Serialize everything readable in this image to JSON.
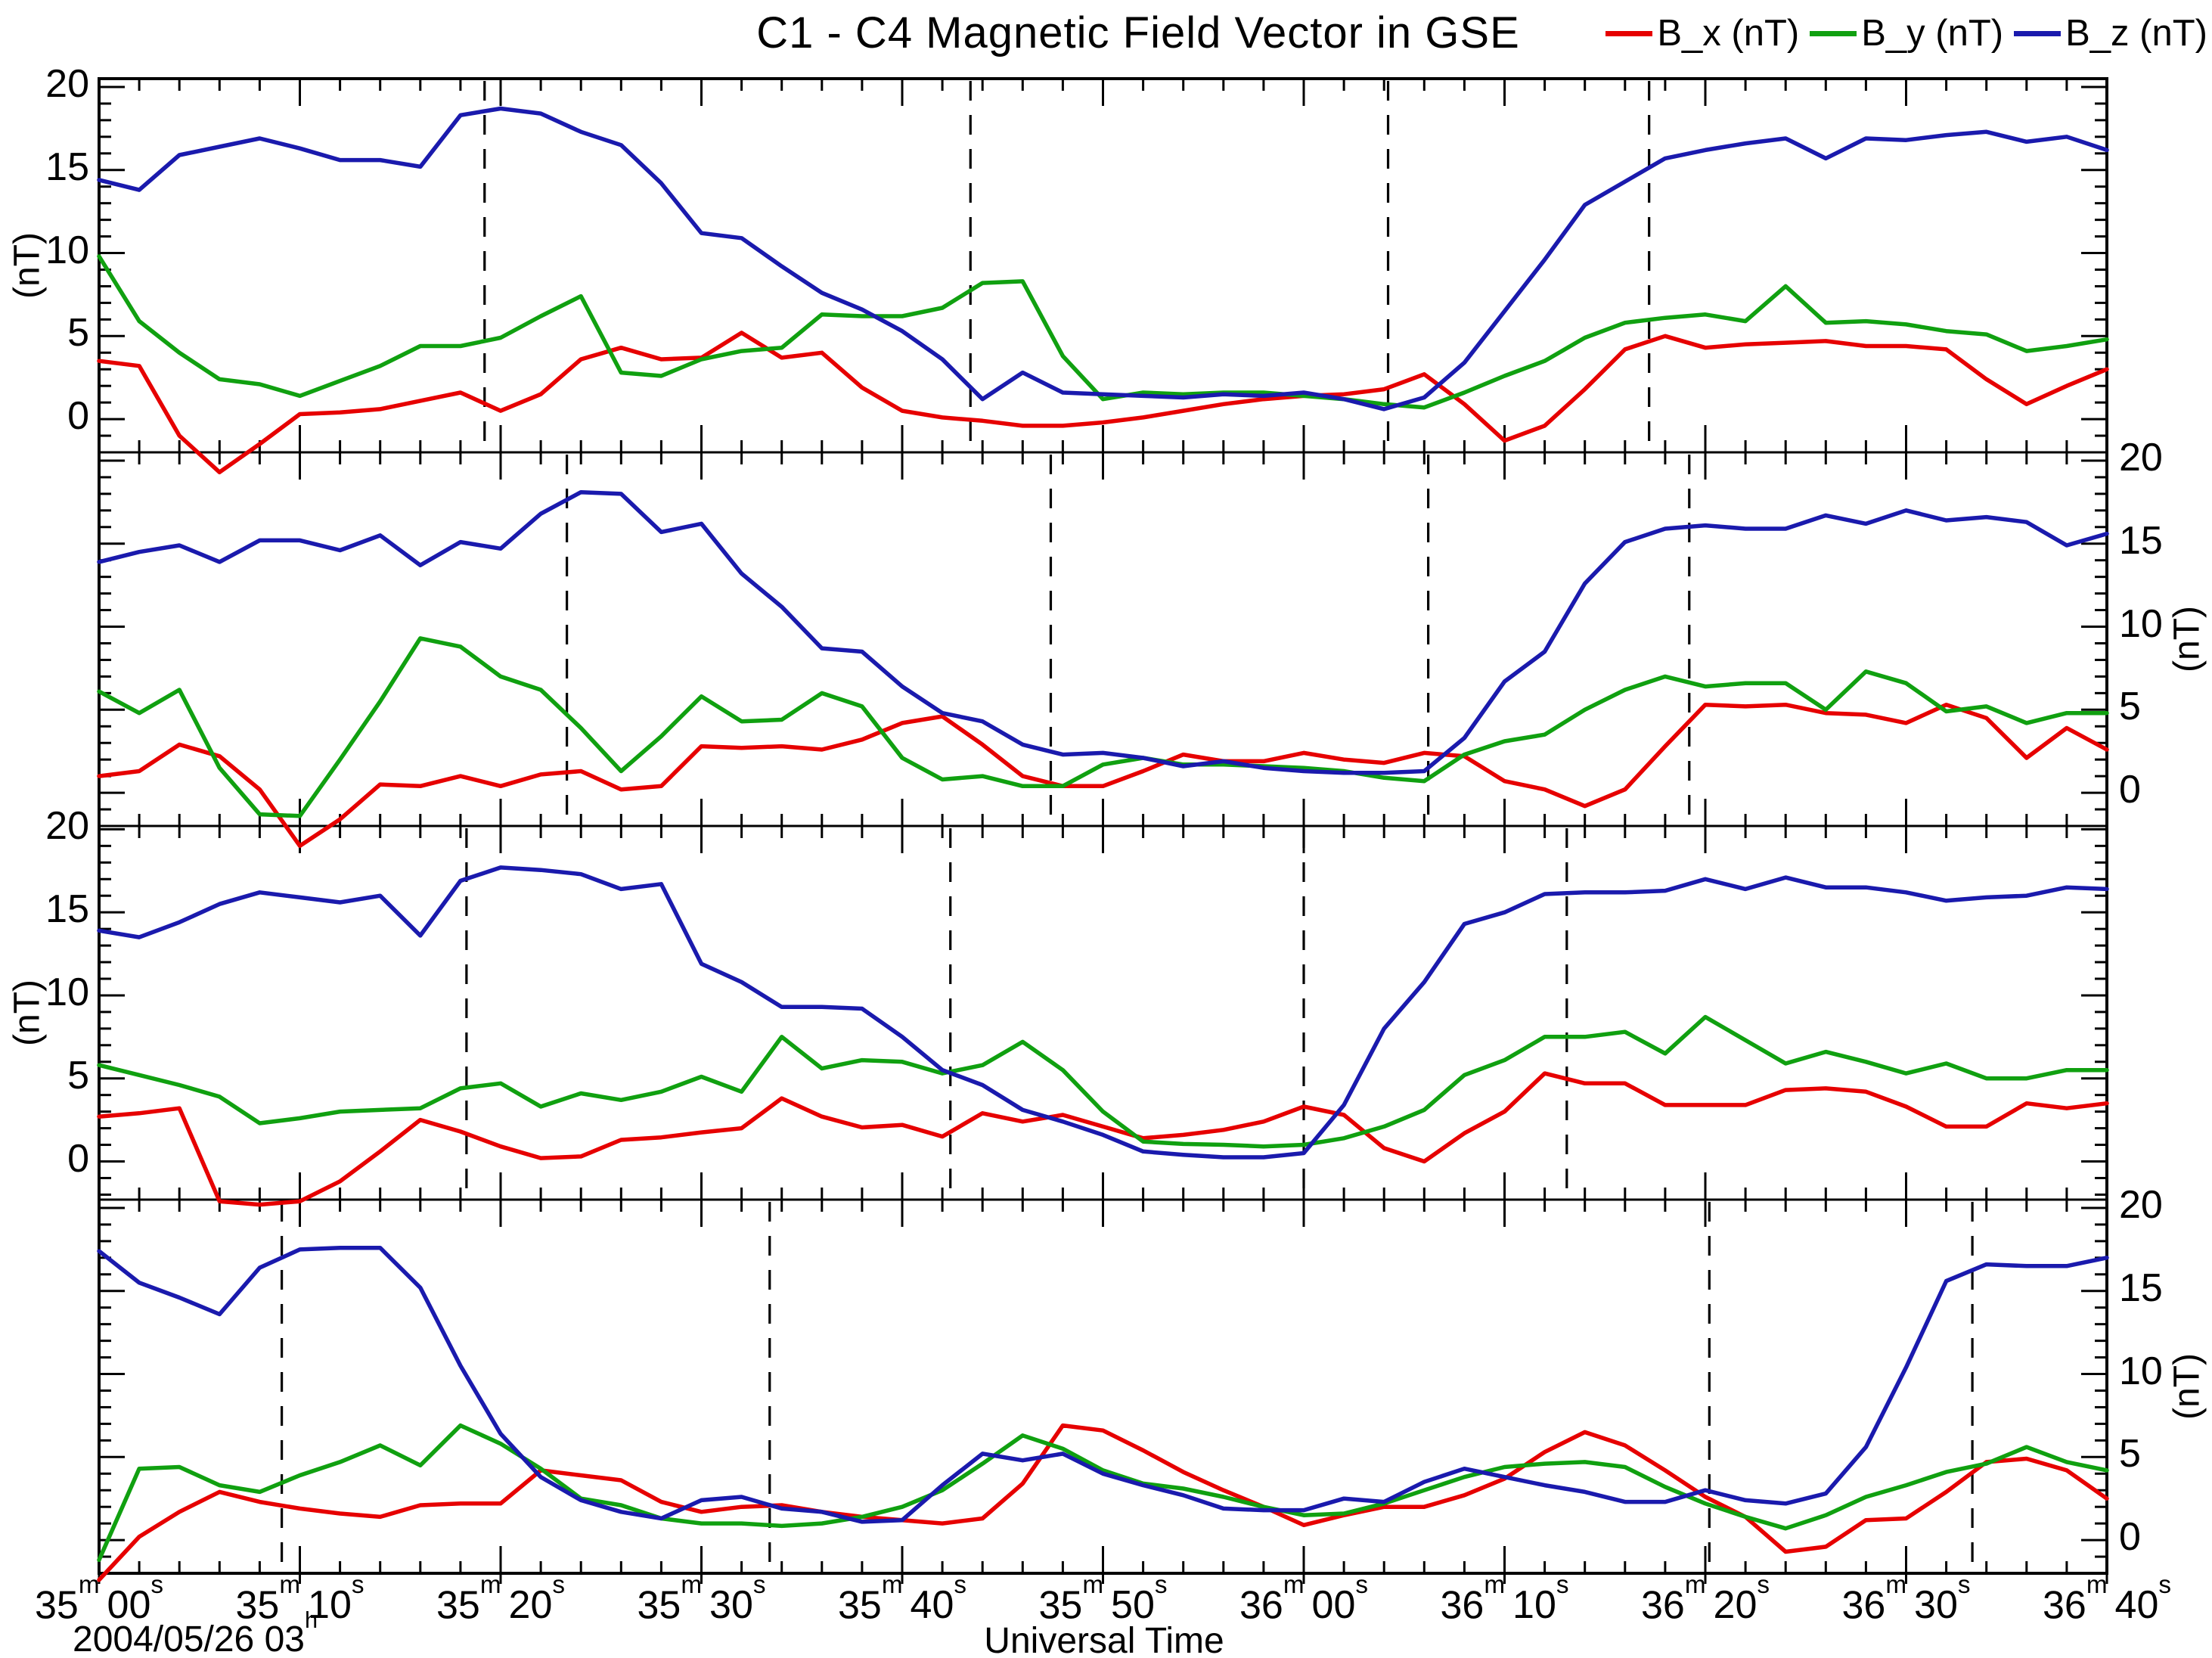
{
  "chart_data": {
    "type": "line",
    "title": "C1 - C4  Magnetic Field Vector in GSE",
    "xlabel": "Universal Time",
    "ylabel": "(nT)",
    "date_label": {
      "text": "2004/05/26 03",
      "sup": "h"
    },
    "legend": [
      {
        "key": "B_x",
        "label": "B_x (nT)",
        "color": "#e60000"
      },
      {
        "key": "B_y",
        "label": "B_y (nT)",
        "color": "#10a010"
      },
      {
        "key": "B_z",
        "label": "B_z (nT)",
        "color": "#1a1aad"
      }
    ],
    "x_seconds": {
      "start": 0,
      "end": 100,
      "step": 2
    },
    "xticks": [
      {
        "t": 0,
        "min": "35",
        "sec": "00"
      },
      {
        "t": 10,
        "min": "35",
        "sec": "10"
      },
      {
        "t": 20,
        "min": "35",
        "sec": "20"
      },
      {
        "t": 30,
        "min": "35",
        "sec": "30"
      },
      {
        "t": 40,
        "min": "35",
        "sec": "40"
      },
      {
        "t": 50,
        "min": "35",
        "sec": "50"
      },
      {
        "t": 60,
        "min": "36",
        "sec": "00"
      },
      {
        "t": 70,
        "min": "36",
        "sec": "10"
      },
      {
        "t": 80,
        "min": "36",
        "sec": "20"
      },
      {
        "t": 90,
        "min": "36",
        "sec": "30"
      },
      {
        "t": 100,
        "min": "36",
        "sec": "40"
      }
    ],
    "yticks": [
      0,
      5,
      10,
      15,
      20
    ],
    "panels": [
      {
        "id": "C1",
        "ylabel_side": "left",
        "ylim": [
          -2.0,
          20.5
        ],
        "dashed_lines_t": [
          19.2,
          43.4,
          64.2,
          77.2
        ],
        "series": {
          "B_x": [
            3.5,
            3.2,
            -1.0,
            -3.2,
            -1.5,
            0.3,
            0.4,
            0.6,
            1.1,
            1.6,
            0.5,
            1.5,
            3.6,
            4.3,
            3.6,
            3.7,
            5.2,
            3.7,
            4.0,
            1.9,
            0.5,
            0.1,
            -0.1,
            -0.4,
            -0.4,
            -0.2,
            0.1,
            0.5,
            0.9,
            1.2,
            1.4,
            1.5,
            1.8,
            2.7,
            0.9,
            -1.3,
            -0.4,
            1.8,
            4.2,
            5.0,
            4.3,
            4.5,
            4.6,
            4.7,
            4.4,
            4.4,
            4.2,
            2.4,
            0.9,
            2.0,
            3.0
          ],
          "B_y": [
            9.8,
            5.9,
            4.0,
            2.4,
            2.1,
            1.4,
            2.3,
            3.2,
            4.4,
            4.4,
            4.9,
            6.2,
            7.4,
            2.8,
            2.6,
            3.6,
            4.1,
            4.3,
            6.3,
            6.2,
            6.2,
            6.7,
            8.2,
            8.3,
            3.8,
            1.2,
            1.6,
            1.5,
            1.6,
            1.6,
            1.4,
            1.2,
            0.9,
            0.7,
            1.6,
            2.6,
            3.5,
            4.9,
            5.8,
            6.1,
            6.3,
            5.9,
            8.0,
            5.8,
            5.9,
            5.7,
            5.3,
            5.1,
            4.1,
            4.4,
            4.8
          ],
          "B_z": [
            14.4,
            13.8,
            15.9,
            16.4,
            16.9,
            16.3,
            15.6,
            15.6,
            15.2,
            18.3,
            18.7,
            18.4,
            17.3,
            16.5,
            14.2,
            11.2,
            10.9,
            9.2,
            7.6,
            6.6,
            5.3,
            3.6,
            1.2,
            2.8,
            1.6,
            1.5,
            1.4,
            1.3,
            1.5,
            1.4,
            1.6,
            1.2,
            0.6,
            1.3,
            3.4,
            6.5,
            9.6,
            12.9,
            14.3,
            15.7,
            16.2,
            16.6,
            16.9,
            15.7,
            16.9,
            16.8,
            17.1,
            17.3,
            16.7,
            17.0,
            16.2
          ]
        }
      },
      {
        "id": "C2",
        "ylabel_side": "right",
        "ylim": [
          -2.0,
          20.5
        ],
        "dashed_lines_t": [
          23.3,
          47.4,
          66.2,
          79.2
        ],
        "series": {
          "B_x": [
            1.0,
            1.3,
            2.9,
            2.2,
            0.2,
            -3.2,
            -1.6,
            0.5,
            0.4,
            1.0,
            0.4,
            1.1,
            1.3,
            0.2,
            0.4,
            2.8,
            2.7,
            2.8,
            2.6,
            3.2,
            4.2,
            4.6,
            2.9,
            1.0,
            0.4,
            0.4,
            1.3,
            2.3,
            1.9,
            1.9,
            2.4,
            2.0,
            1.8,
            2.4,
            2.2,
            0.7,
            0.2,
            -0.8,
            0.2,
            2.8,
            5.3,
            5.2,
            5.3,
            4.8,
            4.7,
            4.2,
            5.3,
            4.5,
            2.1,
            3.9,
            2.6
          ],
          "B_y": [
            6.1,
            4.8,
            6.2,
            1.5,
            -1.3,
            -1.4,
            2.0,
            5.5,
            9.3,
            8.8,
            7.0,
            6.2,
            3.9,
            1.3,
            3.4,
            5.8,
            4.3,
            4.4,
            6.0,
            5.2,
            2.1,
            0.8,
            1.0,
            0.4,
            0.4,
            1.7,
            2.1,
            1.7,
            1.7,
            1.6,
            1.5,
            1.3,
            0.9,
            0.7,
            2.3,
            3.1,
            3.5,
            5.0,
            6.2,
            7.0,
            6.4,
            6.6,
            6.6,
            5.0,
            7.3,
            6.6,
            4.9,
            5.2,
            4.2,
            4.8,
            4.8
          ],
          "B_z": [
            13.9,
            14.5,
            14.9,
            13.9,
            15.2,
            15.2,
            14.6,
            15.5,
            13.7,
            15.1,
            14.7,
            16.8,
            18.1,
            18.0,
            15.7,
            16.2,
            13.2,
            11.2,
            8.7,
            8.5,
            6.4,
            4.8,
            4.3,
            2.9,
            2.3,
            2.4,
            2.1,
            1.6,
            1.9,
            1.5,
            1.3,
            1.2,
            1.2,
            1.3,
            3.3,
            6.7,
            8.5,
            12.6,
            15.1,
            15.9,
            16.1,
            15.9,
            15.9,
            16.7,
            16.2,
            17.0,
            16.4,
            16.6,
            16.3,
            14.9,
            15.6
          ]
        }
      },
      {
        "id": "C3",
        "ylabel_side": "left",
        "ylim": [
          -2.3,
          20.2
        ],
        "dashed_lines_t": [
          18.3,
          42.4,
          60.0,
          73.1
        ],
        "series": {
          "B_x": [
            2.7,
            2.9,
            3.2,
            -2.4,
            -2.6,
            -2.4,
            -1.2,
            0.6,
            2.5,
            1.8,
            0.9,
            0.2,
            0.3,
            1.3,
            1.45,
            1.75,
            2.0,
            3.8,
            2.7,
            2.05,
            2.2,
            1.5,
            2.9,
            2.4,
            2.8,
            2.1,
            1.4,
            1.6,
            1.9,
            2.4,
            3.3,
            2.8,
            0.8,
            0.0,
            1.7,
            3.0,
            5.3,
            4.7,
            4.7,
            3.4,
            3.4,
            3.4,
            4.3,
            4.4,
            4.2,
            3.3,
            2.1,
            2.1,
            3.5,
            3.2,
            3.5
          ],
          "B_y": [
            5.8,
            5.2,
            4.6,
            3.9,
            2.3,
            2.6,
            3.0,
            3.1,
            3.2,
            4.4,
            4.7,
            3.3,
            4.1,
            3.7,
            4.2,
            5.1,
            4.2,
            7.5,
            5.6,
            6.1,
            6.0,
            5.3,
            5.8,
            7.2,
            5.5,
            3.0,
            1.2,
            1.05,
            1.0,
            0.9,
            1.0,
            1.4,
            2.1,
            3.1,
            5.2,
            6.1,
            7.5,
            7.5,
            7.8,
            6.5,
            8.7,
            7.3,
            5.9,
            6.6,
            6.0,
            5.3,
            5.9,
            5.0,
            5.0,
            5.5,
            5.5
          ],
          "B_z": [
            13.9,
            13.5,
            14.4,
            15.5,
            16.2,
            15.9,
            15.6,
            16.0,
            13.6,
            16.9,
            17.7,
            17.55,
            17.3,
            16.4,
            16.7,
            11.9,
            10.8,
            9.3,
            9.3,
            9.2,
            7.5,
            5.5,
            4.6,
            3.1,
            2.4,
            1.6,
            0.6,
            0.4,
            0.25,
            0.25,
            0.5,
            3.4,
            8.0,
            10.8,
            14.3,
            15.0,
            16.1,
            16.2,
            16.2,
            16.3,
            17.0,
            16.4,
            17.1,
            16.5,
            16.5,
            16.2,
            15.7,
            15.9,
            16.0,
            16.5,
            16.4
          ]
        }
      },
      {
        "id": "C4",
        "ylabel_side": "right",
        "ylim": [
          -2.0,
          20.5
        ],
        "dashed_lines_t": [
          9.1,
          33.4,
          80.2,
          93.3
        ],
        "series": {
          "B_x": [
            -2.4,
            0.2,
            1.7,
            2.9,
            2.3,
            1.9,
            1.6,
            1.4,
            2.1,
            2.2,
            2.2,
            4.2,
            3.9,
            3.6,
            2.3,
            1.7,
            2.0,
            2.1,
            1.7,
            1.4,
            1.2,
            1.0,
            1.3,
            3.4,
            6.9,
            6.6,
            5.4,
            4.1,
            3.0,
            2.0,
            0.9,
            1.5,
            2.0,
            2.0,
            2.7,
            3.7,
            5.3,
            6.5,
            5.7,
            4.2,
            2.6,
            1.4,
            -0.7,
            -0.4,
            1.2,
            1.3,
            2.9,
            4.7,
            4.9,
            4.2,
            2.5
          ],
          "B_y": [
            -1.2,
            4.3,
            4.4,
            3.3,
            2.9,
            3.9,
            4.7,
            5.7,
            4.5,
            6.9,
            5.8,
            4.3,
            2.5,
            2.1,
            1.3,
            1.0,
            1.0,
            0.85,
            1.0,
            1.4,
            2.0,
            3.0,
            4.6,
            6.3,
            5.5,
            4.2,
            3.4,
            3.1,
            2.6,
            2.0,
            1.5,
            1.6,
            2.2,
            3.0,
            3.8,
            4.4,
            4.6,
            4.7,
            4.4,
            3.2,
            2.2,
            1.4,
            0.7,
            1.5,
            2.6,
            3.3,
            4.1,
            4.6,
            5.6,
            4.7,
            4.2
          ],
          "B_z": [
            17.4,
            15.5,
            14.6,
            13.6,
            16.4,
            17.5,
            17.6,
            17.6,
            15.2,
            10.5,
            6.4,
            3.8,
            2.4,
            1.7,
            1.3,
            2.4,
            2.6,
            1.9,
            1.7,
            1.1,
            1.2,
            3.3,
            5.2,
            4.8,
            5.2,
            4.0,
            3.3,
            2.7,
            1.9,
            1.8,
            1.8,
            2.5,
            2.3,
            3.5,
            4.3,
            3.8,
            3.3,
            2.9,
            2.3,
            2.3,
            3.0,
            2.4,
            2.2,
            2.8,
            5.6,
            10.4,
            15.6,
            16.6,
            16.5,
            16.5,
            17.0
          ]
        }
      }
    ],
    "layout": {
      "plot_left": 131,
      "plot_right": 2786,
      "plot_top": 104,
      "plot_bottom": 2080,
      "panel_boundaries": [
        598,
        1092,
        1586
      ],
      "grid": false,
      "legend_position": "top-right"
    }
  }
}
